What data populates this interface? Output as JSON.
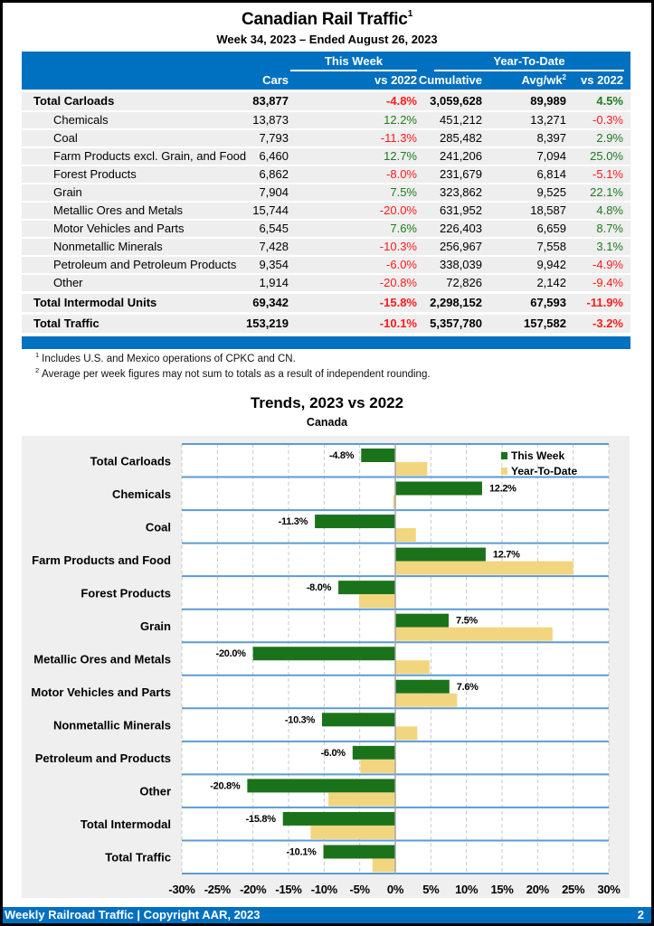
{
  "header": {
    "title": "Canadian Rail Traffic",
    "title_sup": "1",
    "subtitle": "Week 34, 2023 – Ended August 26, 2023"
  },
  "table": {
    "group_this_week": "This Week",
    "group_ytd": "Year-To-Date",
    "columns": {
      "cars": "Cars",
      "vs2022_week": "vs 2022",
      "cumulative": "Cumulative",
      "avgwk": "Avg/wk",
      "avgwk_sup": "2",
      "vs2022_ytd": "vs 2022"
    },
    "rows": [
      {
        "label": "Total Carloads",
        "type": "total",
        "cars": "83,877",
        "week_pct": "-4.8%",
        "cumulative": "3,059,628",
        "avgwk": "89,989",
        "ytd_pct": "4.5%"
      },
      {
        "label": "Chemicals",
        "type": "sub",
        "cars": "13,873",
        "week_pct": "12.2%",
        "cumulative": "451,212",
        "avgwk": "13,271",
        "ytd_pct": "-0.3%"
      },
      {
        "label": "Coal",
        "type": "sub",
        "cars": "7,793",
        "week_pct": "-11.3%",
        "cumulative": "285,482",
        "avgwk": "8,397",
        "ytd_pct": "2.9%"
      },
      {
        "label": "Farm Products excl. Grain, and Food",
        "type": "sub",
        "cars": "6,460",
        "week_pct": "12.7%",
        "cumulative": "241,206",
        "avgwk": "7,094",
        "ytd_pct": "25.0%"
      },
      {
        "label": "Forest Products",
        "type": "sub",
        "cars": "6,862",
        "week_pct": "-8.0%",
        "cumulative": "231,679",
        "avgwk": "6,814",
        "ytd_pct": "-5.1%"
      },
      {
        "label": "Grain",
        "type": "sub",
        "cars": "7,904",
        "week_pct": "7.5%",
        "cumulative": "323,862",
        "avgwk": "9,525",
        "ytd_pct": "22.1%"
      },
      {
        "label": "Metallic Ores and Metals",
        "type": "sub",
        "cars": "15,744",
        "week_pct": "-20.0%",
        "cumulative": "631,952",
        "avgwk": "18,587",
        "ytd_pct": "4.8%"
      },
      {
        "label": "Motor Vehicles and Parts",
        "type": "sub",
        "cars": "6,545",
        "week_pct": "7.6%",
        "cumulative": "226,403",
        "avgwk": "6,659",
        "ytd_pct": "8.7%"
      },
      {
        "label": "Nonmetallic Minerals",
        "type": "sub",
        "cars": "7,428",
        "week_pct": "-10.3%",
        "cumulative": "256,967",
        "avgwk": "7,558",
        "ytd_pct": "3.1%"
      },
      {
        "label": "Petroleum and Petroleum Products",
        "type": "sub",
        "cars": "9,354",
        "week_pct": "-6.0%",
        "cumulative": "338,039",
        "avgwk": "9,942",
        "ytd_pct": "-4.9%"
      },
      {
        "label": "Other",
        "type": "sub",
        "cars": "1,914",
        "week_pct": "-20.8%",
        "cumulative": "72,826",
        "avgwk": "2,142",
        "ytd_pct": "-9.4%"
      },
      {
        "label": "Total Intermodal Units",
        "type": "total",
        "cars": "69,342",
        "week_pct": "-15.8%",
        "cumulative": "2,298,152",
        "avgwk": "67,593",
        "ytd_pct": "-11.9%"
      },
      {
        "label": "Total Traffic",
        "type": "total",
        "cars": "153,219",
        "week_pct": "-10.1%",
        "cumulative": "5,357,780",
        "avgwk": "157,582",
        "ytd_pct": "-3.2%"
      }
    ]
  },
  "footnotes": [
    {
      "mark": "1",
      "text": "Includes U.S. and Mexico operations of CPKC and CN."
    },
    {
      "mark": "2",
      "text": "Average per week figures may not sum to totals as a result of independent rounding."
    }
  ],
  "colors": {
    "brand_blue": "#0070c0",
    "positive": "#1e7b1e",
    "negative": "#ff1a1a",
    "this_week_bar": "#1a731a",
    "ytd_bar": "#f2d67f",
    "row_separator": "#5b9bd5"
  },
  "chart_data": {
    "type": "bar",
    "orientation": "horizontal",
    "title": "Trends, 2023 vs 2022",
    "subtitle": "Canada",
    "xlabel": "",
    "ylabel": "",
    "xlim": [
      -30,
      30
    ],
    "x_ticks": [
      "-30%",
      "-25%",
      "-20%",
      "-15%",
      "-10%",
      "-5%",
      "0%",
      "5%",
      "10%",
      "15%",
      "20%",
      "25%",
      "30%"
    ],
    "x_tick_values": [
      -30,
      -25,
      -20,
      -15,
      -10,
      -5,
      0,
      5,
      10,
      15,
      20,
      25,
      30
    ],
    "grid": "vertical dashed",
    "legend_position": "top-right",
    "categories": [
      "Total Carloads",
      "Chemicals",
      "Coal",
      "Farm Products and Food",
      "Forest Products",
      "Grain",
      "Metallic Ores and Metals",
      "Motor Vehicles and Parts",
      "Nonmetallic Minerals",
      "Petroleum and Products",
      "Other",
      "Total Intermodal",
      "Total Traffic"
    ],
    "series": [
      {
        "name": "This Week",
        "values": [
          -4.8,
          12.2,
          -11.3,
          12.7,
          -8.0,
          7.5,
          -20.0,
          7.6,
          -10.3,
          -6.0,
          -20.8,
          -15.8,
          -10.1
        ],
        "labels": [
          "-4.8%",
          "12.2%",
          "-11.3%",
          "12.7%",
          "-8.0%",
          "7.5%",
          "-20.0%",
          "7.6%",
          "-10.3%",
          "-6.0%",
          "-20.8%",
          "-15.8%",
          "-10.1%"
        ]
      },
      {
        "name": "Year-To-Date",
        "values": [
          4.5,
          -0.3,
          2.9,
          25.0,
          -5.1,
          22.1,
          4.8,
          8.7,
          3.1,
          -4.9,
          -9.4,
          -11.9,
          -3.2
        ]
      }
    ]
  },
  "footer": {
    "left": "Weekly Railroad Traffic | Copyright AAR, 2023",
    "page": "2"
  }
}
